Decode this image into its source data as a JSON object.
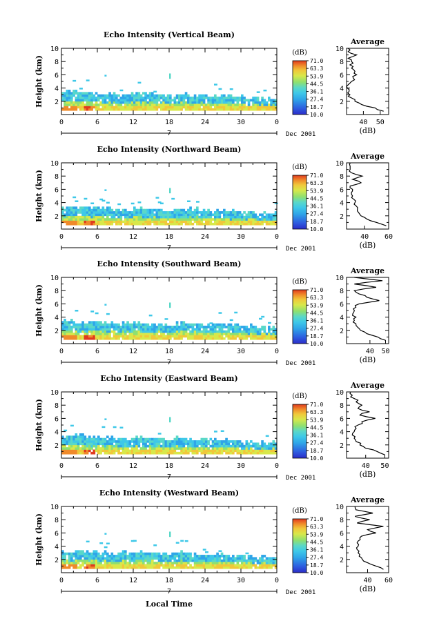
{
  "common": {
    "ylabel": "Height (km)",
    "units": "(dB)",
    "colorbar_ticks": [
      "71.0",
      "63.3",
      "53.9",
      "44.5",
      "36.1",
      "27.4",
      "18.7",
      "10.0"
    ],
    "x_ticks": [
      "0",
      "6",
      "12",
      "18",
      "24",
      "30",
      "0"
    ],
    "y_ticks": [
      "2",
      "4",
      "6",
      "8",
      "10"
    ],
    "day_label": "7",
    "date_label": "Dec 2001",
    "avg_title": "Average",
    "avg_xlabel": "(dB)",
    "xlabel": "Local Time"
  },
  "chart_data": [
    {
      "type": "heatmap",
      "title": "Echo Intensity (Vertical Beam)",
      "xlabel": "",
      "ylabel": "Height (km)",
      "xlim": [
        0,
        36
      ],
      "ylim": [
        0,
        10
      ],
      "clim": [
        10.0,
        71.0
      ],
      "top_height_km": [
        3.3,
        3.4,
        3.1,
        2.9,
        3.0,
        2.8,
        3.0,
        3.1,
        2.9,
        2.8,
        3.0,
        2.9,
        2.8,
        2.6,
        2.7,
        2.6,
        2.5,
        2.4,
        2.3
      ],
      "avg_profile": {
        "xlim": [
          30,
          55
        ],
        "x_ticks": [
          "40",
          "50"
        ],
        "height_km": [
          0.5,
          1,
          1.5,
          2,
          2.5,
          3,
          3.5,
          4,
          4.5,
          5,
          5.5,
          6,
          6.5,
          7,
          7.5,
          8,
          8.5,
          9,
          9.5,
          10
        ],
        "db": [
          52,
          47,
          39,
          35,
          33,
          32,
          31.5,
          30.5,
          31,
          33,
          34,
          36,
          35,
          33,
          32,
          33,
          31,
          36,
          31,
          31
        ]
      }
    },
    {
      "type": "heatmap",
      "title": "Echo Intensity (Northward Beam)",
      "xlabel": "",
      "ylabel": "Height (km)",
      "xlim": [
        0,
        36
      ],
      "ylim": [
        0,
        10
      ],
      "clim": [
        10.0,
        71.0
      ],
      "top_height_km": [
        3.1,
        3.3,
        3.2,
        3.0,
        2.9,
        2.8,
        3.0,
        2.9,
        2.8,
        2.9,
        2.8,
        2.9,
        2.7,
        2.6,
        2.6,
        2.5,
        2.4,
        2.4,
        2.3
      ],
      "avg_profile": {
        "xlim": [
          25,
          60
        ],
        "x_ticks": [
          "40",
          "60"
        ],
        "height_km": [
          0.5,
          1,
          1.5,
          2,
          2.5,
          3,
          3.5,
          4,
          4.5,
          5,
          5.5,
          6,
          6.5,
          7,
          7.5,
          8,
          8.5,
          9,
          9.5,
          10
        ],
        "db": [
          58,
          50,
          42,
          37,
          35,
          34,
          33,
          32,
          31,
          30,
          29,
          30,
          28,
          37,
          30,
          38,
          29,
          28,
          28,
          28
        ]
      }
    },
    {
      "type": "heatmap",
      "title": "Echo Intensity (Southward Beam)",
      "xlabel": "",
      "ylabel": "Height (km)",
      "xlim": [
        0,
        36
      ],
      "ylim": [
        0,
        10
      ],
      "clim": [
        10.0,
        71.0
      ],
      "top_height_km": [
        3.3,
        3.0,
        3.1,
        3.2,
        2.9,
        2.9,
        3.0,
        2.8,
        2.9,
        2.8,
        3.0,
        2.9,
        2.8,
        2.7,
        2.6,
        2.7,
        2.5,
        2.3,
        2.2
      ],
      "avg_profile": {
        "xlim": [
          25,
          52
        ],
        "x_ticks": [
          "40",
          "50"
        ],
        "height_km": [
          0.5,
          1,
          1.5,
          2,
          2.5,
          3,
          3.5,
          4,
          4.5,
          5,
          5.5,
          6,
          6.5,
          7,
          7.5,
          8,
          8.5,
          9,
          9.5,
          10
        ],
        "db": [
          50,
          45,
          38,
          34,
          32,
          31,
          30,
          31,
          29,
          30,
          31,
          33,
          46,
          38,
          33,
          30,
          44,
          30,
          48,
          30
        ]
      }
    },
    {
      "type": "heatmap",
      "title": "Echo Intensity (Eastward Beam)",
      "xlabel": "",
      "ylabel": "Height (km)",
      "xlim": [
        0,
        36
      ],
      "ylim": [
        0,
        10
      ],
      "clim": [
        10.0,
        71.0
      ],
      "top_height_km": [
        3.2,
        3.3,
        3.0,
        3.0,
        2.9,
        2.8,
        3.0,
        2.9,
        2.8,
        2.8,
        2.9,
        2.8,
        2.7,
        2.6,
        2.6,
        2.5,
        2.4,
        2.3,
        2.2
      ],
      "avg_profile": {
        "xlim": [
          30,
          52
        ],
        "x_ticks": [
          "40",
          "50"
        ],
        "height_km": [
          0.5,
          1,
          1.5,
          2,
          2.5,
          3,
          3.5,
          4,
          4.5,
          5,
          5.5,
          6,
          6.5,
          7,
          7.5,
          8,
          8.5,
          9,
          9.5,
          10
        ],
        "db": [
          50,
          46,
          40,
          37,
          35,
          34,
          33,
          34,
          35,
          36,
          38,
          45,
          37,
          42,
          36,
          38,
          35,
          34,
          33,
          32
        ]
      }
    },
    {
      "type": "heatmap",
      "title": "Echo Intensity (Westward Beam)",
      "xlabel": "Local Time",
      "ylabel": "Height (km)",
      "xlim": [
        0,
        36
      ],
      "ylim": [
        0,
        10
      ],
      "clim": [
        10.0,
        71.0
      ],
      "top_height_km": [
        3.0,
        3.2,
        3.1,
        2.9,
        2.8,
        2.9,
        3.0,
        2.8,
        2.7,
        2.8,
        2.9,
        2.8,
        2.7,
        2.6,
        2.5,
        2.5,
        2.4,
        2.3,
        2.2
      ],
      "avg_profile": {
        "xlim": [
          20,
          60
        ],
        "x_ticks": [
          "40",
          "60"
        ],
        "height_km": [
          0.5,
          1,
          1.5,
          2,
          2.5,
          3,
          3.5,
          4,
          4.5,
          5,
          5.5,
          6,
          6.5,
          7,
          7.5,
          8,
          8.5,
          9,
          9.5,
          10
        ],
        "db": [
          55,
          48,
          40,
          35,
          32,
          31,
          30,
          31,
          30,
          33,
          34,
          48,
          40,
          55,
          30,
          42,
          28,
          45,
          29,
          28
        ]
      }
    }
  ],
  "colors": {
    "scale": [
      "#2c2cc8",
      "#2e5fe0",
      "#2fa5e8",
      "#3ec8e8",
      "#5ad8c8",
      "#8ee070",
      "#d8e84a",
      "#f0c83a",
      "#f08a2a",
      "#e03a1e"
    ]
  }
}
